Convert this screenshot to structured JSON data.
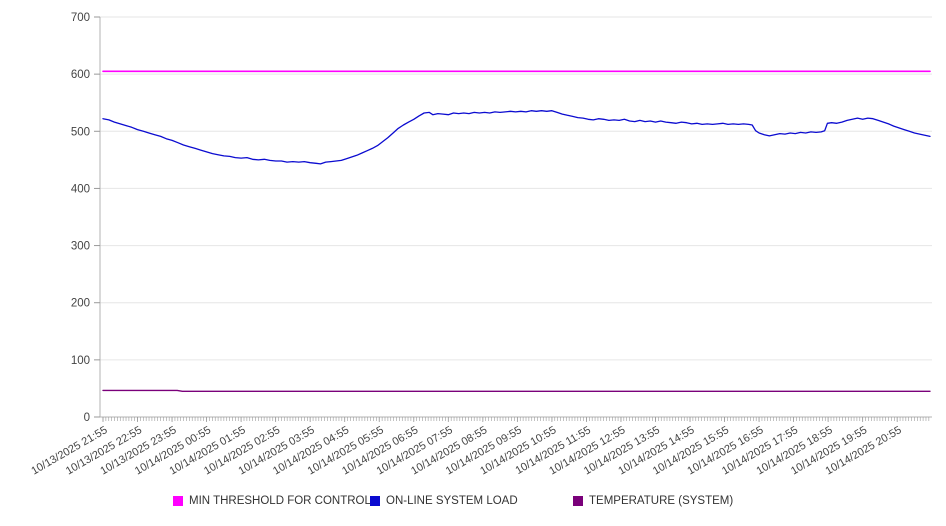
{
  "chart_data": {
    "type": "line",
    "title": "",
    "xlabel": "",
    "ylabel": "",
    "ylim": [
      0,
      700
    ],
    "y_ticks": [
      0,
      100,
      200,
      300,
      400,
      500,
      600,
      700
    ],
    "grid": true,
    "legend_position": "bottom",
    "t_max": 23.95,
    "x_tick_hours": [
      0,
      1,
      2,
      3,
      4,
      5,
      6,
      7,
      8,
      9,
      10,
      11,
      12,
      13,
      14,
      15,
      16,
      17,
      18,
      19,
      20,
      21,
      22,
      23
    ],
    "x_tick_labels": [
      "10/13/2025 21:55",
      "10/13/2025 22:55",
      "10/13/2025 23:55",
      "10/14/2025 00:55",
      "10/14/2025 01:55",
      "10/14/2025 02:55",
      "10/14/2025 03:55",
      "10/14/2025 04:55",
      "10/14/2025 05:55",
      "10/14/2025 06:55",
      "10/14/2025 07:55",
      "10/14/2025 08:55",
      "10/14/2025 09:55",
      "10/14/2025 10:55",
      "10/14/2025 11:55",
      "10/14/2025 12:55",
      "10/14/2025 13:55",
      "10/14/2025 14:55",
      "10/14/2025 15:55",
      "10/14/2025 16:55",
      "10/14/2025 17:55",
      "10/14/2025 18:55",
      "10/14/2025 19:55",
      "10/14/2025 20:55"
    ],
    "minor_ticks_per_hour": 12,
    "series": [
      {
        "name": "MIN THRESHOLD FOR CONTROL",
        "color": "#ff00ff",
        "width": 1.6,
        "points": [
          [
            0,
            605
          ],
          [
            23.95,
            605
          ]
        ]
      },
      {
        "name": "ON-LINE SYSTEM LOAD",
        "color": "#0b0bd0",
        "width": 1.3,
        "points": [
          [
            0,
            522
          ],
          [
            0.17,
            520
          ],
          [
            0.33,
            516
          ],
          [
            0.5,
            513
          ],
          [
            0.67,
            510
          ],
          [
            0.83,
            507
          ],
          [
            1,
            503
          ],
          [
            1.17,
            500
          ],
          [
            1.33,
            497
          ],
          [
            1.5,
            494
          ],
          [
            1.67,
            491
          ],
          [
            1.83,
            487
          ],
          [
            2,
            484
          ],
          [
            2.17,
            480
          ],
          [
            2.33,
            476
          ],
          [
            2.5,
            473
          ],
          [
            2.67,
            470
          ],
          [
            2.83,
            467
          ],
          [
            3,
            464
          ],
          [
            3.17,
            461
          ],
          [
            3.33,
            459
          ],
          [
            3.5,
            457
          ],
          [
            3.67,
            456
          ],
          [
            3.83,
            454
          ],
          [
            4,
            453
          ],
          [
            4.17,
            454
          ],
          [
            4.33,
            451
          ],
          [
            4.5,
            450
          ],
          [
            4.67,
            451
          ],
          [
            4.83,
            449
          ],
          [
            5,
            448
          ],
          [
            5.17,
            448
          ],
          [
            5.33,
            446
          ],
          [
            5.5,
            447
          ],
          [
            5.67,
            446
          ],
          [
            5.83,
            447
          ],
          [
            6,
            445
          ],
          [
            6.17,
            444
          ],
          [
            6.3,
            443
          ],
          [
            6.45,
            446
          ],
          [
            6.6,
            447
          ],
          [
            6.75,
            448
          ],
          [
            6.9,
            449
          ],
          [
            7.05,
            452
          ],
          [
            7.2,
            455
          ],
          [
            7.35,
            458
          ],
          [
            7.5,
            462
          ],
          [
            7.65,
            466
          ],
          [
            7.8,
            470
          ],
          [
            7.95,
            475
          ],
          [
            8.1,
            482
          ],
          [
            8.25,
            489
          ],
          [
            8.4,
            497
          ],
          [
            8.55,
            505
          ],
          [
            8.7,
            511
          ],
          [
            8.85,
            516
          ],
          [
            9,
            521
          ],
          [
            9.15,
            527
          ],
          [
            9.3,
            532
          ],
          [
            9.45,
            533
          ],
          [
            9.55,
            529
          ],
          [
            9.7,
            531
          ],
          [
            9.85,
            530
          ],
          [
            10,
            529
          ],
          [
            10.15,
            532
          ],
          [
            10.3,
            531
          ],
          [
            10.45,
            532
          ],
          [
            10.6,
            531
          ],
          [
            10.75,
            533
          ],
          [
            10.9,
            532
          ],
          [
            11.05,
            533
          ],
          [
            11.2,
            532
          ],
          [
            11.35,
            534
          ],
          [
            11.5,
            533
          ],
          [
            11.65,
            534
          ],
          [
            11.8,
            535
          ],
          [
            11.95,
            534
          ],
          [
            12.1,
            535
          ],
          [
            12.25,
            534
          ],
          [
            12.4,
            536
          ],
          [
            12.55,
            535
          ],
          [
            12.7,
            536
          ],
          [
            12.85,
            535
          ],
          [
            13,
            536
          ],
          [
            13.15,
            533
          ],
          [
            13.3,
            530
          ],
          [
            13.45,
            528
          ],
          [
            13.6,
            526
          ],
          [
            13.75,
            524
          ],
          [
            13.9,
            523
          ],
          [
            14.05,
            521
          ],
          [
            14.2,
            520
          ],
          [
            14.35,
            522
          ],
          [
            14.5,
            521
          ],
          [
            14.65,
            519
          ],
          [
            14.8,
            520
          ],
          [
            14.95,
            519
          ],
          [
            15.1,
            521
          ],
          [
            15.25,
            518
          ],
          [
            15.4,
            517
          ],
          [
            15.55,
            519
          ],
          [
            15.7,
            517
          ],
          [
            15.85,
            518
          ],
          [
            16,
            516
          ],
          [
            16.15,
            518
          ],
          [
            16.3,
            516
          ],
          [
            16.45,
            515
          ],
          [
            16.6,
            514
          ],
          [
            16.75,
            516
          ],
          [
            16.9,
            515
          ],
          [
            17.05,
            513
          ],
          [
            17.2,
            514
          ],
          [
            17.35,
            512
          ],
          [
            17.5,
            513
          ],
          [
            17.65,
            512
          ],
          [
            17.8,
            513
          ],
          [
            17.95,
            514
          ],
          [
            18.1,
            512
          ],
          [
            18.25,
            513
          ],
          [
            18.4,
            512
          ],
          [
            18.55,
            513
          ],
          [
            18.7,
            512
          ],
          [
            18.8,
            511
          ],
          [
            18.9,
            501
          ],
          [
            19,
            497
          ],
          [
            19.15,
            494
          ],
          [
            19.3,
            492
          ],
          [
            19.45,
            494
          ],
          [
            19.6,
            496
          ],
          [
            19.75,
            495
          ],
          [
            19.9,
            497
          ],
          [
            20.05,
            496
          ],
          [
            20.2,
            498
          ],
          [
            20.35,
            497
          ],
          [
            20.5,
            499
          ],
          [
            20.65,
            498
          ],
          [
            20.8,
            499
          ],
          [
            20.9,
            501
          ],
          [
            20.98,
            514
          ],
          [
            21.1,
            515
          ],
          [
            21.25,
            514
          ],
          [
            21.4,
            516
          ],
          [
            21.55,
            519
          ],
          [
            21.7,
            521
          ],
          [
            21.85,
            523
          ],
          [
            22,
            521
          ],
          [
            22.15,
            523
          ],
          [
            22.3,
            522
          ],
          [
            22.45,
            519
          ],
          [
            22.6,
            516
          ],
          [
            22.75,
            513
          ],
          [
            22.9,
            509
          ],
          [
            23.05,
            506
          ],
          [
            23.2,
            503
          ],
          [
            23.35,
            500
          ],
          [
            23.5,
            497
          ],
          [
            23.65,
            495
          ],
          [
            23.8,
            493
          ],
          [
            23.95,
            491
          ]
        ]
      },
      {
        "name": "TEMPERATURE (SYSTEM)",
        "color": "#7a007a",
        "width": 1.4,
        "points": [
          [
            0,
            46.5
          ],
          [
            2.15,
            46.5
          ],
          [
            2.3,
            45
          ],
          [
            23.95,
            45
          ]
        ]
      }
    ],
    "colors": {
      "grid": "#e6e6e6",
      "axis": "#b3b3b3",
      "tick": "#999999",
      "tick_label": "#444444",
      "legend_text": "#333333",
      "background": "#ffffff"
    }
  },
  "legend": {
    "items": [
      {
        "label": "MIN THRESHOLD FOR CONTROL"
      },
      {
        "label": "ON-LINE SYSTEM LOAD"
      },
      {
        "label": "TEMPERATURE (SYSTEM)"
      }
    ]
  }
}
